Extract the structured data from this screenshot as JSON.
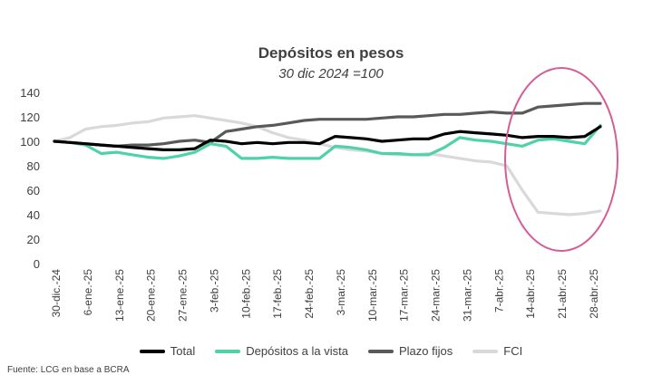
{
  "chart_data": {
    "type": "line",
    "title": "Depósitos en pesos",
    "subtitle": "30 dic 2024 =100",
    "xlabel": "",
    "ylabel": "",
    "ylim": [
      0,
      140
    ],
    "yticks": [
      0,
      20,
      40,
      60,
      80,
      100,
      120,
      140
    ],
    "x_ticks": [
      "30-dic.-24",
      "6-ene.-25",
      "13-ene.-25",
      "20-ene.-25",
      "27-ene.-25",
      "3-feb.-25",
      "10-feb.-25",
      "17-feb.-25",
      "24-feb.-25",
      "3-mar.-25",
      "10-mar.-25",
      "17-mar.-25",
      "24-mar.-25",
      "31-mar.-25",
      "7-abr.-25",
      "14-abr.-25",
      "21-abr.-25",
      "28-abr.-25"
    ],
    "grid": false,
    "legend_position": "bottom",
    "series": [
      {
        "name": "Total",
        "color": "#000000",
        "values": [
          100,
          99,
          98,
          97,
          96,
          95,
          94,
          93,
          93,
          94,
          101,
          100,
          98,
          99,
          98,
          99,
          99,
          98,
          104,
          103,
          102,
          100,
          101,
          102,
          102,
          106,
          108,
          107,
          106,
          105,
          103,
          104,
          104,
          103,
          104,
          112
        ]
      },
      {
        "name": "Depósitos a la vista",
        "color": "#4fd1aa",
        "values": [
          100,
          99,
          97,
          90,
          91,
          89,
          87,
          86,
          88,
          91,
          98,
          96,
          86,
          86,
          87,
          86,
          86,
          86,
          96,
          95,
          93,
          90,
          90,
          89,
          89,
          95,
          103,
          101,
          100,
          98,
          96,
          101,
          102,
          100,
          98,
          113
        ]
      },
      {
        "name": "Plazo fijos",
        "color": "#595959",
        "values": [
          100,
          99,
          98,
          97,
          96,
          97,
          97,
          98,
          100,
          101,
          99,
          108,
          110,
          112,
          113,
          115,
          117,
          118,
          118,
          118,
          118,
          119,
          120,
          120,
          121,
          122,
          122,
          123,
          124,
          123,
          123,
          128,
          129,
          130,
          131,
          131
        ]
      },
      {
        "name": "FCI",
        "color": "#d9d9d9",
        "values": [
          100,
          103,
          110,
          112,
          113,
          115,
          116,
          119,
          120,
          121,
          119,
          117,
          115,
          112,
          107,
          103,
          101,
          98,
          95,
          93,
          92,
          90,
          89,
          89,
          90,
          88,
          86,
          84,
          83,
          80,
          60,
          42,
          41,
          40,
          41,
          43
        ]
      }
    ]
  },
  "source_note": "Fuente: LCG en base a BCRA"
}
